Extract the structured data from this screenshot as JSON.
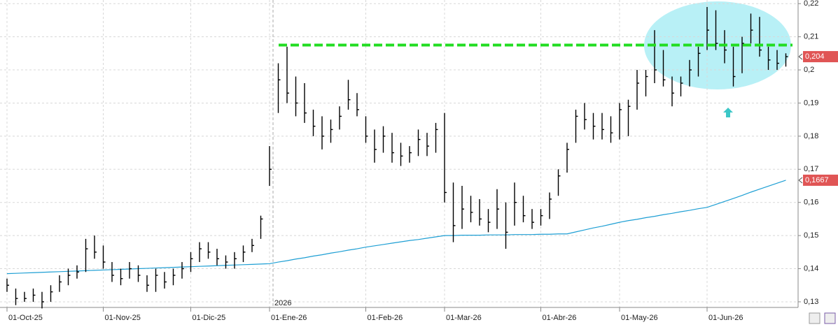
{
  "chart_data": {
    "type": "ohlc",
    "categories": [
      "01-Oct-25",
      null,
      null,
      null,
      null,
      null,
      null,
      null,
      null,
      null,
      null,
      "01-Nov-25",
      null,
      null,
      null,
      null,
      null,
      null,
      null,
      null,
      null,
      "01-Dic-25",
      null,
      null,
      null,
      null,
      null,
      null,
      null,
      null,
      "01-Ene-26",
      null,
      null,
      null,
      null,
      null,
      null,
      null,
      null,
      null,
      null,
      "01-Feb-26",
      null,
      null,
      null,
      null,
      null,
      null,
      null,
      null,
      "01-Mar-26",
      null,
      null,
      null,
      null,
      null,
      null,
      null,
      null,
      null,
      null,
      "01-Abr-26",
      null,
      null,
      null,
      null,
      null,
      null,
      null,
      null,
      "01-May-26",
      null,
      null,
      null,
      null,
      null,
      null,
      null,
      null,
      null,
      "01-Jun-26",
      null,
      null,
      null,
      null,
      null,
      null,
      null,
      null,
      null
    ],
    "high": [
      0.137,
      0.134,
      0.133,
      0.134,
      0.133,
      0.135,
      0.138,
      0.14,
      0.141,
      0.149,
      0.15,
      0.147,
      0.142,
      0.14,
      0.142,
      0.141,
      0.138,
      0.14,
      0.139,
      0.14,
      0.142,
      0.145,
      0.148,
      0.148,
      0.146,
      0.144,
      0.145,
      0.147,
      0.149,
      0.156,
      0.177,
      0.202,
      0.207,
      0.198,
      0.196,
      0.188,
      0.186,
      0.185,
      0.189,
      0.197,
      0.193,
      0.186,
      0.182,
      0.183,
      0.181,
      0.178,
      0.177,
      0.182,
      0.181,
      0.184,
      0.187,
      0.166,
      0.165,
      0.162,
      0.161,
      0.158,
      0.164,
      0.16,
      0.166,
      0.162,
      0.158,
      0.158,
      0.163,
      0.17,
      0.178,
      0.188,
      0.19,
      0.187,
      0.187,
      0.186,
      0.19,
      0.191,
      0.2,
      0.2,
      0.212,
      0.206,
      0.198,
      0.198,
      0.203,
      0.207,
      0.219,
      0.218,
      0.212,
      0.207,
      0.21,
      0.217,
      0.216,
      0.207,
      0.206,
      0.205
    ],
    "low": [
      0.133,
      0.129,
      0.13,
      0.13,
      0.128,
      0.13,
      0.133,
      0.135,
      0.137,
      0.139,
      0.143,
      0.14,
      0.136,
      0.135,
      0.137,
      0.136,
      0.133,
      0.133,
      0.134,
      0.135,
      0.137,
      0.139,
      0.142,
      0.143,
      0.141,
      0.14,
      0.14,
      0.142,
      0.145,
      0.149,
      0.165,
      0.187,
      0.19,
      0.186,
      0.184,
      0.18,
      0.176,
      0.178,
      0.182,
      0.188,
      0.186,
      0.178,
      0.172,
      0.175,
      0.172,
      0.171,
      0.172,
      0.174,
      0.174,
      0.175,
      0.16,
      0.148,
      0.152,
      0.154,
      0.153,
      0.151,
      0.152,
      0.146,
      0.153,
      0.154,
      0.152,
      0.153,
      0.155,
      0.162,
      0.169,
      0.178,
      0.182,
      0.179,
      0.179,
      0.178,
      0.179,
      0.18,
      0.188,
      0.192,
      0.196,
      0.195,
      0.189,
      0.192,
      0.195,
      0.198,
      0.206,
      0.206,
      0.202,
      0.195,
      0.199,
      0.208,
      0.204,
      0.2,
      0.2,
      0.201
    ],
    "close": [
      0.135,
      0.131,
      0.131,
      0.132,
      0.13,
      0.133,
      0.136,
      0.138,
      0.139,
      0.146,
      0.145,
      0.142,
      0.138,
      0.137,
      0.14,
      0.138,
      0.135,
      0.138,
      0.136,
      0.138,
      0.14,
      0.143,
      0.146,
      0.145,
      0.143,
      0.142,
      0.143,
      0.145,
      0.147,
      0.155,
      0.17,
      0.197,
      0.193,
      0.19,
      0.187,
      0.183,
      0.18,
      0.182,
      0.186,
      0.191,
      0.188,
      0.18,
      0.176,
      0.18,
      0.175,
      0.174,
      0.175,
      0.179,
      0.177,
      0.182,
      0.163,
      0.153,
      0.158,
      0.157,
      0.155,
      0.154,
      0.158,
      0.151,
      0.16,
      0.156,
      0.154,
      0.156,
      0.161,
      0.168,
      0.176,
      0.186,
      0.185,
      0.183,
      0.182,
      0.181,
      0.188,
      0.189,
      0.196,
      0.198,
      0.2,
      0.197,
      0.193,
      0.196,
      0.2,
      0.205,
      0.212,
      0.208,
      0.206,
      0.198,
      0.208,
      0.212,
      0.206,
      0.203,
      0.202,
      0.204
    ],
    "color": "#000000",
    "ma": {
      "color": "#1e9fd4",
      "values": [
        0.1385,
        0.1386,
        0.1387,
        0.1388,
        0.1389,
        0.139,
        0.1391,
        0.1392,
        0.1393,
        0.1394,
        0.1395,
        0.1396,
        0.1397,
        0.1398,
        0.1399,
        0.14,
        0.1401,
        0.1402,
        0.1403,
        0.1404,
        0.1405,
        0.1406,
        0.1407,
        0.1408,
        0.1409,
        0.141,
        0.1411,
        0.1412,
        0.1413,
        0.1414,
        0.1415,
        0.142,
        0.1424,
        0.1429,
        0.1433,
        0.1438,
        0.1442,
        0.1447,
        0.1451,
        0.1456,
        0.146,
        0.1465,
        0.1469,
        0.1473,
        0.1477,
        0.1481,
        0.1485,
        0.1488,
        0.1492,
        0.1496,
        0.15,
        0.15,
        0.1501,
        0.1501,
        0.1501,
        0.1502,
        0.1502,
        0.1502,
        0.1503,
        0.1503,
        0.1503,
        0.1504,
        0.1504,
        0.1505,
        0.1505,
        0.1511,
        0.1517,
        0.1523,
        0.1528,
        0.1534,
        0.154,
        0.1545,
        0.1549,
        0.1554,
        0.1558,
        0.1563,
        0.1567,
        0.1572,
        0.1576,
        0.1581,
        0.1585,
        0.1594,
        0.1603,
        0.1612,
        0.1621,
        0.1631,
        0.164,
        0.1649,
        0.1658,
        0.1667
      ]
    },
    "resistance": {
      "value": 0.2075,
      "color": "#22dd22"
    },
    "year_label": "2026",
    "ylim": [
      0.1283,
      0.2211
    ],
    "yticks": [
      {
        "value": 0.13,
        "label": "0,13"
      },
      {
        "value": 0.14,
        "label": "0,14"
      },
      {
        "value": 0.15,
        "label": "0,15"
      },
      {
        "value": 0.16,
        "label": "0,16"
      },
      {
        "value": 0.17,
        "label": "0,17"
      },
      {
        "value": 0.18,
        "label": "0,18"
      },
      {
        "value": 0.19,
        "label": "0,19"
      },
      {
        "value": 0.2,
        "label": "0,2"
      },
      {
        "value": 0.21,
        "label": "0,21"
      },
      {
        "value": 0.22,
        "label": "0,22"
      }
    ],
    "price_labels": [
      {
        "value": 0.204,
        "label": "0,204",
        "color": "#e05555"
      },
      {
        "value": 0.1667,
        "label": "0,1667",
        "color": "#e05555"
      }
    ],
    "grid": true
  }
}
